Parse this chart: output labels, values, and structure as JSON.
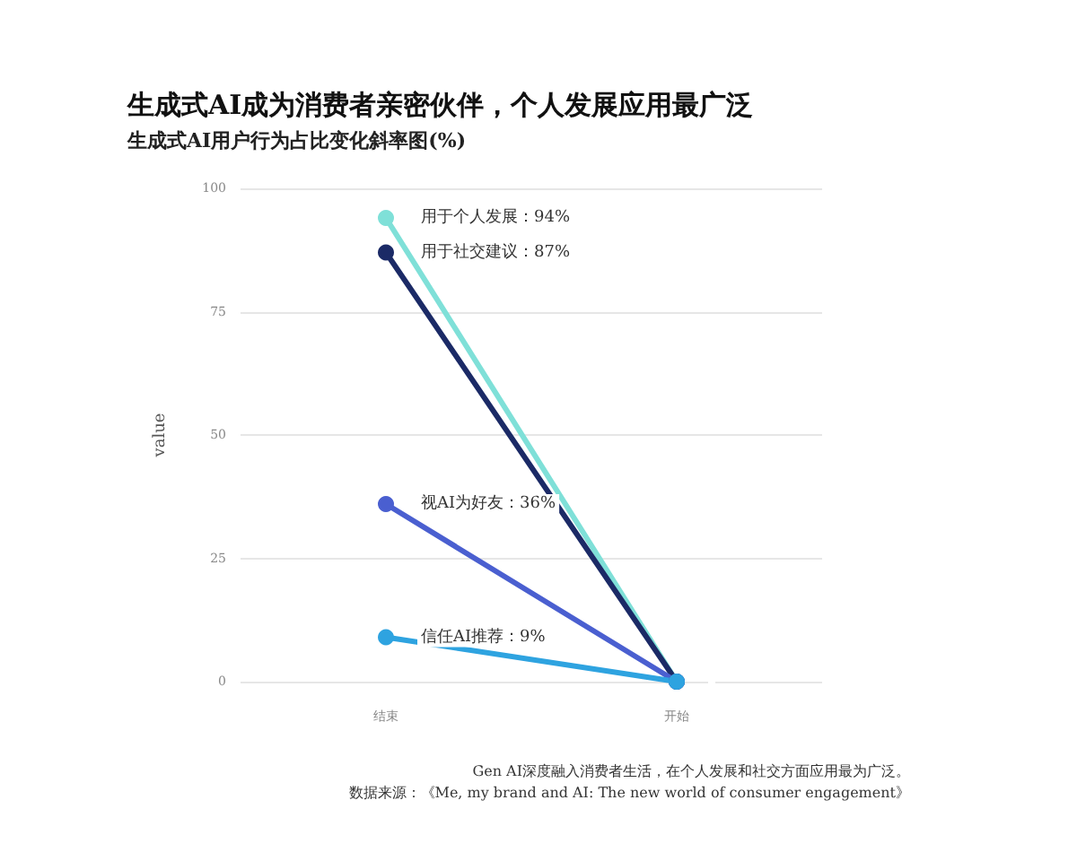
{
  "chart_data": {
    "type": "line",
    "title": "生成式AI成为消费者亲密伙伴，个人发展应用最广泛",
    "subtitle": "生成式AI用户行为占比变化斜率图(%)",
    "ylabel": "value",
    "categories": [
      "结束",
      "开始"
    ],
    "series": [
      {
        "color": "#7fe0d8",
        "values": [
          94,
          0
        ],
        "value_labels": [
          "用于个人发展：94%",
          null
        ]
      },
      {
        "color": "#1b2a66",
        "values": [
          87,
          0
        ],
        "value_labels": [
          "用于社交建议：87%",
          null
        ]
      },
      {
        "color": "#4a5fd0",
        "values": [
          36,
          0
        ],
        "value_labels": [
          "视AI为好友：36%",
          null
        ]
      },
      {
        "color": "#2ea3e0",
        "values": [
          9,
          0
        ],
        "value_labels": [
          "信任AI推荐：9%",
          null
        ]
      }
    ],
    "ylim": [
      0,
      100
    ],
    "yticks": [
      0,
      25,
      50,
      75,
      100
    ],
    "grid": "y",
    "marker": "circle",
    "line_style": "solid",
    "annotations": [
      "Gen AI深度融入消费者生活，在个人发展和社交方面应用最为广泛。",
      "数据来源：《Me, my brand and AI: The new world of consumer engagement》"
    ]
  }
}
